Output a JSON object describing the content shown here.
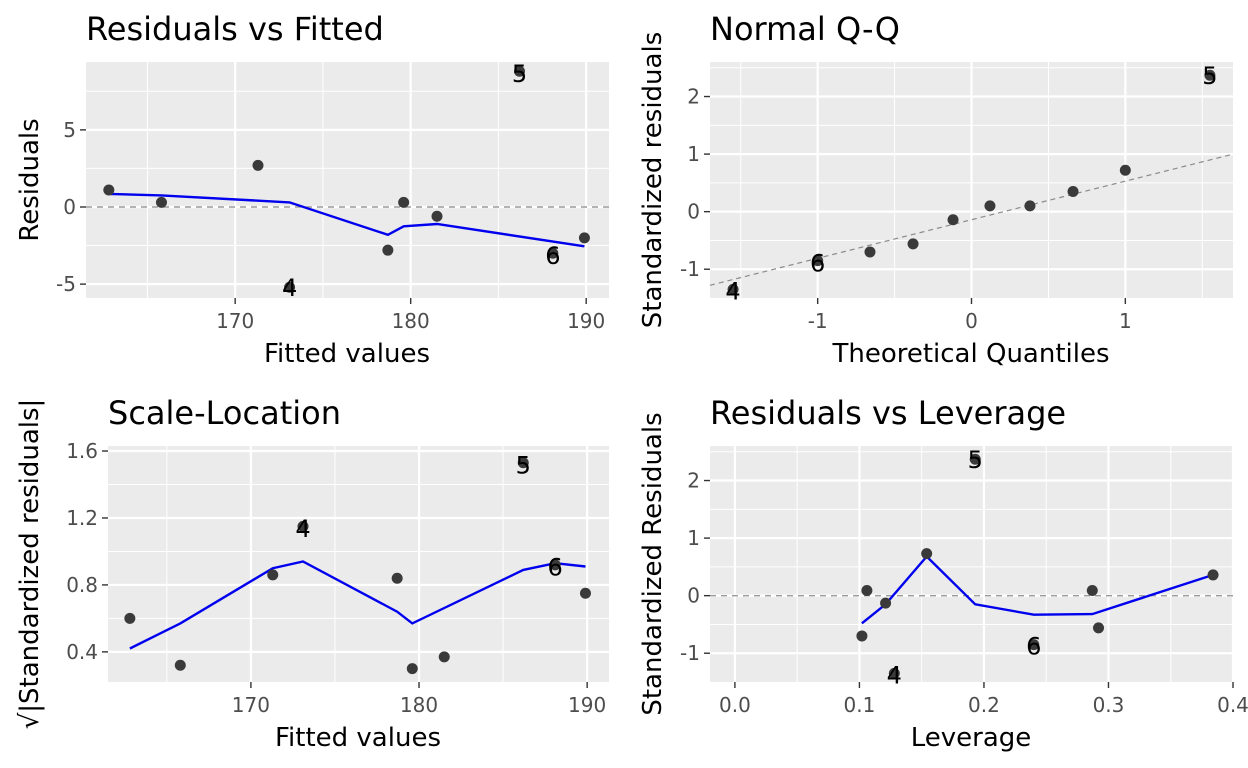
{
  "chart_data": [
    {
      "type": "scatter",
      "title": "Residuals vs Fitted",
      "xlabel": "Fitted values",
      "ylabel": "Residuals",
      "xlim": [
        161.5,
        191.3
      ],
      "ylim": [
        -5.9,
        9.4
      ],
      "xticks": [
        170,
        180,
        190
      ],
      "yticks": [
        -5,
        0,
        5
      ],
      "grid": true,
      "points": [
        {
          "x": 162.8,
          "y": 1.1
        },
        {
          "x": 165.8,
          "y": 0.3
        },
        {
          "x": 171.3,
          "y": 2.7
        },
        {
          "x": 173.1,
          "y": -5.2
        },
        {
          "x": 178.7,
          "y": -2.8
        },
        {
          "x": 179.6,
          "y": 0.3
        },
        {
          "x": 181.5,
          "y": -0.6
        },
        {
          "x": 186.2,
          "y": 8.8
        },
        {
          "x": 188.1,
          "y": -3.0
        },
        {
          "x": 189.9,
          "y": -2.0
        }
      ],
      "smooth": [
        {
          "x": 162.8,
          "y": 0.85
        },
        {
          "x": 165.8,
          "y": 0.75
        },
        {
          "x": 173.1,
          "y": 0.3
        },
        {
          "x": 178.7,
          "y": -1.8
        },
        {
          "x": 179.6,
          "y": -1.25
        },
        {
          "x": 181.5,
          "y": -1.1
        },
        {
          "x": 189.9,
          "y": -2.55
        }
      ],
      "reference_line": {
        "y": 0
      },
      "labels": [
        {
          "text": "5",
          "x": 186.2,
          "y": 8.7
        },
        {
          "text": "6",
          "x": 188.1,
          "y": -3.1
        },
        {
          "text": "4",
          "x": 173.1,
          "y": -5.2
        }
      ]
    },
    {
      "type": "scatter",
      "title": "Normal Q-Q",
      "xlabel": "Theoretical Quantiles",
      "ylabel": "Standardized residuals",
      "xlim": [
        -1.7,
        1.7
      ],
      "ylim": [
        -1.5,
        2.6
      ],
      "xticks": [
        -1,
        0,
        1
      ],
      "yticks": [
        -1,
        0,
        1,
        2
      ],
      "grid": true,
      "points": [
        {
          "x": -1.55,
          "y": -1.35
        },
        {
          "x": -1.0,
          "y": -0.85
        },
        {
          "x": -0.66,
          "y": -0.7
        },
        {
          "x": -0.38,
          "y": -0.56
        },
        {
          "x": -0.12,
          "y": -0.14
        },
        {
          "x": 0.12,
          "y": 0.1
        },
        {
          "x": 0.38,
          "y": 0.1
        },
        {
          "x": 0.66,
          "y": 0.35
        },
        {
          "x": 1.0,
          "y": 0.72
        },
        {
          "x": 1.55,
          "y": 2.37
        }
      ],
      "qq_line": {
        "intercept": -0.14,
        "slope": 0.67
      },
      "labels": [
        {
          "text": "5",
          "x": 1.55,
          "y": 2.37
        },
        {
          "text": "6",
          "x": -1.0,
          "y": -0.88
        },
        {
          "text": "4",
          "x": -1.55,
          "y": -1.37
        }
      ]
    },
    {
      "type": "scatter",
      "title": "Scale-Location",
      "xlabel": "Fitted values",
      "ylabel": "√|Standardized residuals|",
      "xlim": [
        161.5,
        191.3
      ],
      "ylim": [
        0.22,
        1.63
      ],
      "xticks": [
        170,
        180,
        190
      ],
      "yticks": [
        0.4,
        0.8,
        1.2,
        1.6
      ],
      "ytick_labels": [
        "0.4",
        "0.8",
        "1.2",
        "1.6"
      ],
      "grid": true,
      "points": [
        {
          "x": 162.8,
          "y": 0.6
        },
        {
          "x": 165.8,
          "y": 0.32
        },
        {
          "x": 171.3,
          "y": 0.86
        },
        {
          "x": 173.1,
          "y": 1.15
        },
        {
          "x": 178.7,
          "y": 0.84
        },
        {
          "x": 179.6,
          "y": 0.3
        },
        {
          "x": 181.5,
          "y": 0.37
        },
        {
          "x": 186.2,
          "y": 1.53
        },
        {
          "x": 188.1,
          "y": 0.92
        },
        {
          "x": 189.9,
          "y": 0.75
        }
      ],
      "smooth": [
        {
          "x": 162.8,
          "y": 0.42
        },
        {
          "x": 165.8,
          "y": 0.57
        },
        {
          "x": 171.3,
          "y": 0.9
        },
        {
          "x": 173.1,
          "y": 0.94
        },
        {
          "x": 178.7,
          "y": 0.64
        },
        {
          "x": 179.6,
          "y": 0.57
        },
        {
          "x": 186.2,
          "y": 0.89
        },
        {
          "x": 188.1,
          "y": 0.93
        },
        {
          "x": 189.9,
          "y": 0.91
        }
      ],
      "labels": [
        {
          "text": "5",
          "x": 186.2,
          "y": 1.52
        },
        {
          "text": "4",
          "x": 173.1,
          "y": 1.14
        },
        {
          "text": "6",
          "x": 188.1,
          "y": 0.91
        }
      ]
    },
    {
      "type": "scatter",
      "title": "Residuals vs Leverage",
      "xlabel": "Leverage",
      "ylabel": "Standardized Residuals",
      "xlim": [
        -0.02,
        0.4
      ],
      "ylim": [
        -1.5,
        2.6
      ],
      "xticks": [
        0.0,
        0.1,
        0.2,
        0.3,
        0.4
      ],
      "xtick_labels": [
        "0.0",
        "0.1",
        "0.2",
        "0.3",
        "0.4"
      ],
      "yticks": [
        -1,
        0,
        1,
        2
      ],
      "grid": true,
      "points": [
        {
          "x": 0.102,
          "y": -0.7
        },
        {
          "x": 0.106,
          "y": 0.09
        },
        {
          "x": 0.121,
          "y": -0.13
        },
        {
          "x": 0.128,
          "y": -1.35
        },
        {
          "x": 0.154,
          "y": 0.73
        },
        {
          "x": 0.193,
          "y": 2.37
        },
        {
          "x": 0.24,
          "y": -0.85
        },
        {
          "x": 0.287,
          "y": 0.09
        },
        {
          "x": 0.292,
          "y": -0.56
        },
        {
          "x": 0.384,
          "y": 0.36
        }
      ],
      "smooth": [
        {
          "x": 0.102,
          "y": -0.48
        },
        {
          "x": 0.121,
          "y": -0.15
        },
        {
          "x": 0.154,
          "y": 0.68
        },
        {
          "x": 0.193,
          "y": -0.15
        },
        {
          "x": 0.24,
          "y": -0.33
        },
        {
          "x": 0.287,
          "y": -0.32
        },
        {
          "x": 0.384,
          "y": 0.36
        }
      ],
      "reference_line": {
        "y": 0
      },
      "labels": [
        {
          "text": "5",
          "x": 0.193,
          "y": 2.37
        },
        {
          "text": "6",
          "x": 0.24,
          "y": -0.87
        },
        {
          "text": "4",
          "x": 0.128,
          "y": -1.37
        }
      ]
    }
  ]
}
